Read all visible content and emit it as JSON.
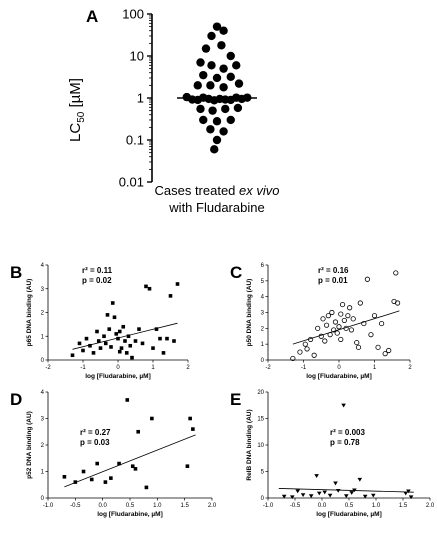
{
  "chart_data": [
    {
      "panel": "A",
      "type": "scatter",
      "ylabel": "LC50 [µM]",
      "ylabel_main": "LC",
      "ylabel_sub": "50",
      "ylabel_unit": " [µM]",
      "xlabel_line1_pre": "Cases treated ",
      "xlabel_line1_em": "ex vivo",
      "xlabel_line2": "with Fludarabine",
      "yscale": "log",
      "ylim": [
        0.01,
        100
      ],
      "yticks": [
        "0.01",
        "0.1",
        "1",
        "10",
        "100"
      ],
      "median": 1.0,
      "points": [
        [
          0,
          50
        ],
        [
          0.12,
          40
        ],
        [
          -0.1,
          30
        ],
        [
          -0.2,
          15
        ],
        [
          0.08,
          18
        ],
        [
          0.25,
          10
        ],
        [
          -0.3,
          7
        ],
        [
          -0.1,
          6
        ],
        [
          0.12,
          5
        ],
        [
          0.35,
          6
        ],
        [
          -0.25,
          3.5
        ],
        [
          0,
          3
        ],
        [
          0.25,
          3.2
        ],
        [
          -0.35,
          2
        ],
        [
          -0.12,
          2
        ],
        [
          0.12,
          1.8
        ],
        [
          0.4,
          2.2
        ],
        [
          -0.55,
          1.05
        ],
        [
          -0.45,
          0.92
        ],
        [
          -0.35,
          0.9
        ],
        [
          -0.25,
          1.02
        ],
        [
          -0.15,
          0.95
        ],
        [
          -0.05,
          0.88
        ],
        [
          0.05,
          0.95
        ],
        [
          0.15,
          0.92
        ],
        [
          0.25,
          0.9
        ],
        [
          0.35,
          1.02
        ],
        [
          0.45,
          0.95
        ],
        [
          0.55,
          1.02
        ],
        [
          -0.3,
          0.55
        ],
        [
          -0.08,
          0.5
        ],
        [
          0.15,
          0.55
        ],
        [
          0.38,
          0.58
        ],
        [
          -0.25,
          0.3
        ],
        [
          0,
          0.28
        ],
        [
          0.25,
          0.3
        ],
        [
          -0.12,
          0.18
        ],
        [
          0.12,
          0.16
        ],
        [
          0,
          0.1
        ],
        [
          -0.05,
          0.06
        ]
      ]
    },
    {
      "panel": "B",
      "type": "scatter",
      "marker": "square",
      "xlabel": "log [Fludarabine, µM]",
      "ylabel": "p65 DNA binding (AU)",
      "xlim": [
        -2,
        2
      ],
      "ylim": [
        0,
        4
      ],
      "xticks": [
        "-2",
        "-1",
        "0",
        "1",
        "2"
      ],
      "yticks": [
        "0",
        "1",
        "2",
        "3",
        "4"
      ],
      "r2": "r² = 0.11",
      "p": "p = 0.02",
      "fit": [
        [
          -1.3,
          0.45
        ],
        [
          1.7,
          1.55
        ]
      ],
      "points": [
        [
          -1.3,
          0.2
        ],
        [
          -1.1,
          0.7
        ],
        [
          -1,
          0.4
        ],
        [
          -0.9,
          0.9
        ],
        [
          -0.8,
          0.6
        ],
        [
          -0.7,
          0.3
        ],
        [
          -0.6,
          1.2
        ],
        [
          -0.55,
          0.8
        ],
        [
          -0.5,
          0.5
        ],
        [
          -0.4,
          1.0
        ],
        [
          -0.35,
          0.7
        ],
        [
          -0.3,
          1.9
        ],
        [
          -0.25,
          1.3
        ],
        [
          -0.2,
          0.55
        ],
        [
          -0.15,
          2.4
        ],
        [
          -0.1,
          1.8
        ],
        [
          -0.05,
          1.1
        ],
        [
          0,
          0.9
        ],
        [
          0.05,
          1.2
        ],
        [
          0.1,
          0.5
        ],
        [
          0.15,
          1.4
        ],
        [
          0.2,
          0.8
        ],
        [
          0.25,
          0.3
        ],
        [
          0.3,
          1.0
        ],
        [
          0.35,
          0.6
        ],
        [
          0.4,
          0.1
        ],
        [
          0.5,
          0.8
        ],
        [
          0.6,
          1.3
        ],
        [
          0.7,
          0.7
        ],
        [
          0.8,
          3.1
        ],
        [
          0.9,
          3.0
        ],
        [
          1.0,
          0.5
        ],
        [
          1.1,
          1.3
        ],
        [
          1.2,
          0.9
        ],
        [
          1.3,
          0.3
        ],
        [
          1.4,
          0.9
        ],
        [
          1.5,
          2.7
        ],
        [
          1.6,
          0.8
        ],
        [
          1.7,
          3.2
        ],
        [
          0.05,
          0.35
        ]
      ]
    },
    {
      "panel": "C",
      "type": "scatter",
      "marker": "circle-open",
      "xlabel": "log [Fludarabine, µM]",
      "ylabel": "p50 DNA binding (AU)",
      "xlim": [
        -2,
        2
      ],
      "ylim": [
        0,
        6
      ],
      "xticks": [
        "-2",
        "-1",
        "0",
        "1",
        "2"
      ],
      "yticks": [
        "0",
        "1",
        "2",
        "3",
        "4",
        "5",
        "6"
      ],
      "r2": "r² = 0.16",
      "p": "p = 0.01",
      "fit": [
        [
          -1.3,
          1.0
        ],
        [
          1.7,
          3.1
        ]
      ],
      "points": [
        [
          -1.3,
          0.1
        ],
        [
          -1.1,
          0.5
        ],
        [
          -0.95,
          1.0
        ],
        [
          -0.9,
          0.7
        ],
        [
          -0.8,
          1.3
        ],
        [
          -0.7,
          0.3
        ],
        [
          -0.6,
          2.0
        ],
        [
          -0.5,
          1.5
        ],
        [
          -0.45,
          2.6
        ],
        [
          -0.4,
          1.2
        ],
        [
          -0.35,
          2.2
        ],
        [
          -0.3,
          2.8
        ],
        [
          -0.25,
          1.6
        ],
        [
          -0.2,
          3.0
        ],
        [
          -0.15,
          1.9
        ],
        [
          -0.1,
          2.4
        ],
        [
          -0.05,
          1.7
        ],
        [
          0,
          2.1
        ],
        [
          0.05,
          2.9
        ],
        [
          0.05,
          1.3
        ],
        [
          0.1,
          3.5
        ],
        [
          0.15,
          2.5
        ],
        [
          0.2,
          2.0
        ],
        [
          0.25,
          2.8
        ],
        [
          0.3,
          3.3
        ],
        [
          0.35,
          1.9
        ],
        [
          0.4,
          2.6
        ],
        [
          0.5,
          1.1
        ],
        [
          0.55,
          0.8
        ],
        [
          0.6,
          3.6
        ],
        [
          0.7,
          2.3
        ],
        [
          0.8,
          5.1
        ],
        [
          0.9,
          1.6
        ],
        [
          1.0,
          2.8
        ],
        [
          1.1,
          0.8
        ],
        [
          1.2,
          2.3
        ],
        [
          1.3,
          0.4
        ],
        [
          1.4,
          0.6
        ],
        [
          1.55,
          3.7
        ],
        [
          1.6,
          5.5
        ],
        [
          1.65,
          3.6
        ]
      ]
    },
    {
      "panel": "D",
      "type": "scatter",
      "marker": "square",
      "xlabel": "log [Fludarabine, µM]",
      "ylabel": "p52 DNA binding (AU)",
      "xlim": [
        -1,
        2
      ],
      "ylim": [
        0,
        4
      ],
      "xticks": [
        "-1.0",
        "-0.5",
        "0.0",
        "0.5",
        "1.0",
        "1.5",
        "2.0"
      ],
      "yticks": [
        "0",
        "1",
        "2",
        "3",
        "4"
      ],
      "r2": "r² = 0.27",
      "p": "p = 0.03",
      "fit": [
        [
          -0.7,
          0.42
        ],
        [
          1.7,
          2.38
        ]
      ],
      "points": [
        [
          -0.7,
          0.8
        ],
        [
          -0.5,
          0.6
        ],
        [
          -0.35,
          1.0
        ],
        [
          -0.2,
          0.7
        ],
        [
          -0.1,
          1.3
        ],
        [
          0.05,
          0.6
        ],
        [
          0.15,
          0.75
        ],
        [
          0.3,
          1.3
        ],
        [
          0.45,
          3.7
        ],
        [
          0.55,
          1.2
        ],
        [
          0.6,
          1.1
        ],
        [
          0.65,
          2.5
        ],
        [
          0.8,
          0.4
        ],
        [
          0.9,
          3.0
        ],
        [
          1.55,
          1.2
        ],
        [
          1.6,
          3.0
        ],
        [
          1.65,
          2.6
        ]
      ]
    },
    {
      "panel": "E",
      "type": "scatter",
      "marker": "triangle-down",
      "xlabel": "log [Fludarabine, µM]",
      "ylabel": "RelB DNA binding (AU)",
      "xlim": [
        -1,
        2
      ],
      "ylim": [
        0,
        20
      ],
      "xticks": [
        "-1.0",
        "-0.5",
        "0.0",
        "0.5",
        "1.0",
        "1.5",
        "2.0"
      ],
      "yticks": [
        "0",
        "5",
        "10",
        "15",
        "20"
      ],
      "r2": "r² = 0.003",
      "p": "p = 0.78",
      "fit": [
        [
          -0.8,
          1.8
        ],
        [
          1.7,
          1.1
        ]
      ],
      "points": [
        [
          -0.7,
          0.3
        ],
        [
          -0.55,
          0.2
        ],
        [
          -0.45,
          1.3
        ],
        [
          -0.35,
          0.6
        ],
        [
          -0.2,
          0.4
        ],
        [
          -0.1,
          4.2
        ],
        [
          -0.05,
          0.9
        ],
        [
          0.05,
          1.1
        ],
        [
          0.15,
          0.5
        ],
        [
          0.25,
          2.8
        ],
        [
          0.3,
          1.4
        ],
        [
          0.4,
          17.5
        ],
        [
          0.45,
          0.4
        ],
        [
          0.55,
          1.0
        ],
        [
          0.6,
          1.5
        ],
        [
          0.7,
          3.5
        ],
        [
          0.8,
          0.3
        ],
        [
          0.95,
          0.5
        ],
        [
          1.55,
          0.9
        ],
        [
          1.6,
          1.3
        ],
        [
          1.65,
          0.2
        ]
      ]
    }
  ]
}
